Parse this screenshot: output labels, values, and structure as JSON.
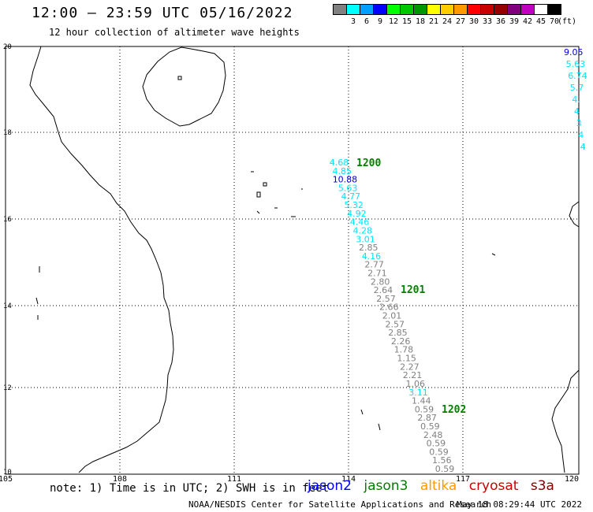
{
  "header": {
    "title": "12:00 – 23:59 UTC 05/16/2022",
    "subtitle": "12 hour collection of altimeter wave heights"
  },
  "legend": {
    "colors": [
      "#808080",
      "#00ffff",
      "#00a0ff",
      "#0000ff",
      "#00ff00",
      "#00c800",
      "#009600",
      "#ffff00",
      "#ffcc00",
      "#ff9900",
      "#ff0000",
      "#c80000",
      "#960000",
      "#800080",
      "#c000c0",
      "#ffffff",
      "#000000"
    ],
    "labels": [
      "3",
      "6",
      "9",
      "12",
      "15",
      "18",
      "21",
      "24",
      "27",
      "30",
      "33",
      "36",
      "39",
      "42",
      "45",
      "70"
    ],
    "unit": "(ft)"
  },
  "axes": {
    "x_ticks": [
      "105",
      "108",
      "111",
      "114",
      "117",
      "120"
    ],
    "y_ticks": [
      "10",
      "12",
      "14",
      "16",
      "18",
      "20"
    ]
  },
  "time_labels": [
    {
      "text": "1200",
      "color": "#008000"
    },
    {
      "text": "1201",
      "color": "#008000"
    },
    {
      "text": "1202",
      "color": "#008000"
    }
  ],
  "track_main": [
    {
      "v": "4.68",
      "c": "#00e5ff"
    },
    {
      "v": "4.85",
      "c": "#00e5ff"
    },
    {
      "v": "10.88",
      "c": "#0000cc"
    },
    {
      "v": "5.63",
      "c": "#00e5ff"
    },
    {
      "v": "4.77",
      "c": "#00e5ff"
    },
    {
      "v": "5.32",
      "c": "#00e5ff"
    },
    {
      "v": "4.92",
      "c": "#00e5ff"
    },
    {
      "v": "4.46",
      "c": "#00e5ff"
    },
    {
      "v": "4.28",
      "c": "#00e5ff"
    },
    {
      "v": "3.01",
      "c": "#00e5ff"
    },
    {
      "v": "2.85",
      "c": "#808080"
    },
    {
      "v": "4.16",
      "c": "#00e5ff"
    },
    {
      "v": "2.77",
      "c": "#808080"
    },
    {
      "v": "2.71",
      "c": "#808080"
    },
    {
      "v": "2.80",
      "c": "#808080"
    },
    {
      "v": "2.64",
      "c": "#808080"
    },
    {
      "v": "2.57",
      "c": "#808080"
    },
    {
      "v": "2.66",
      "c": "#808080"
    },
    {
      "v": "2.01",
      "c": "#808080"
    },
    {
      "v": "2.57",
      "c": "#808080"
    },
    {
      "v": "2.85",
      "c": "#808080"
    },
    {
      "v": "2.26",
      "c": "#808080"
    },
    {
      "v": "1.78",
      "c": "#808080"
    },
    {
      "v": "1.15",
      "c": "#808080"
    },
    {
      "v": "2.27",
      "c": "#808080"
    },
    {
      "v": "2.21",
      "c": "#808080"
    },
    {
      "v": "1.06",
      "c": "#808080"
    },
    {
      "v": "3.11",
      "c": "#00e5ff"
    },
    {
      "v": "1.44",
      "c": "#808080"
    },
    {
      "v": "0.59",
      "c": "#808080"
    },
    {
      "v": "2.87",
      "c": "#808080"
    },
    {
      "v": "0.59",
      "c": "#808080"
    },
    {
      "v": "2.48",
      "c": "#808080"
    },
    {
      "v": "0.59",
      "c": "#808080"
    },
    {
      "v": "0.59",
      "c": "#808080"
    },
    {
      "v": "1.56",
      "c": "#808080"
    },
    {
      "v": "0.59",
      "c": "#808080"
    }
  ],
  "track_edge": [
    {
      "v": "9.05",
      "c": "#0000cc"
    },
    {
      "v": "5.63",
      "c": "#00e5ff"
    },
    {
      "v": "6.74",
      "c": "#00e5ff"
    },
    {
      "v": "5.7",
      "c": "#00e5ff"
    },
    {
      "v": "4.",
      "c": "#00e5ff"
    },
    {
      "v": "4",
      "c": "#00e5ff"
    },
    {
      "v": "3",
      "c": "#00e5ff"
    },
    {
      "v": "4",
      "c": "#00e5ff"
    },
    {
      "v": "4",
      "c": "#00e5ff"
    }
  ],
  "note": "note: 1) Time is in UTC; 2) SWH is in feet",
  "satellites": [
    {
      "name": "jason2",
      "color": "#0000ff"
    },
    {
      "name": "jason3",
      "color": "#008000"
    },
    {
      "name": "altika",
      "color": "#ff9900"
    },
    {
      "name": "cryosat",
      "color": "#cc0000"
    },
    {
      "name": "s3a",
      "color": "#800000"
    }
  ],
  "credit": "NOAA/NESDIS Center for Satellite Applications and Research",
  "timestamp": "May 18 08:29:44 UTC 2022"
}
